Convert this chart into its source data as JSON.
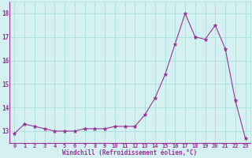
{
  "x": [
    0,
    1,
    2,
    3,
    4,
    5,
    6,
    7,
    8,
    9,
    10,
    11,
    12,
    13,
    14,
    15,
    16,
    17,
    18,
    19,
    20,
    21,
    22,
    23
  ],
  "y": [
    12.9,
    13.3,
    13.2,
    13.1,
    13.0,
    13.0,
    13.0,
    13.1,
    13.1,
    13.1,
    13.2,
    13.2,
    13.2,
    13.7,
    14.4,
    15.4,
    16.7,
    18.0,
    17.0,
    16.9,
    17.5,
    16.5,
    14.3,
    12.7
  ],
  "line_color": "#993399",
  "marker": "*",
  "marker_size": 3.5,
  "bg_color": "#d5f0f0",
  "grid_color": "#aadddd",
  "xlabel": "Windchill (Refroidissement éolien,°C)",
  "xlim": [
    -0.5,
    23.5
  ],
  "ylim": [
    12.5,
    18.5
  ],
  "yticks": [
    13,
    14,
    15,
    16,
    17,
    18
  ],
  "xticks": [
    0,
    1,
    2,
    3,
    4,
    5,
    6,
    7,
    8,
    9,
    10,
    11,
    12,
    13,
    14,
    15,
    16,
    17,
    18,
    19,
    20,
    21,
    22,
    23
  ],
  "tick_color": "#993399",
  "label_color": "#993399",
  "spine_color": "#993399"
}
